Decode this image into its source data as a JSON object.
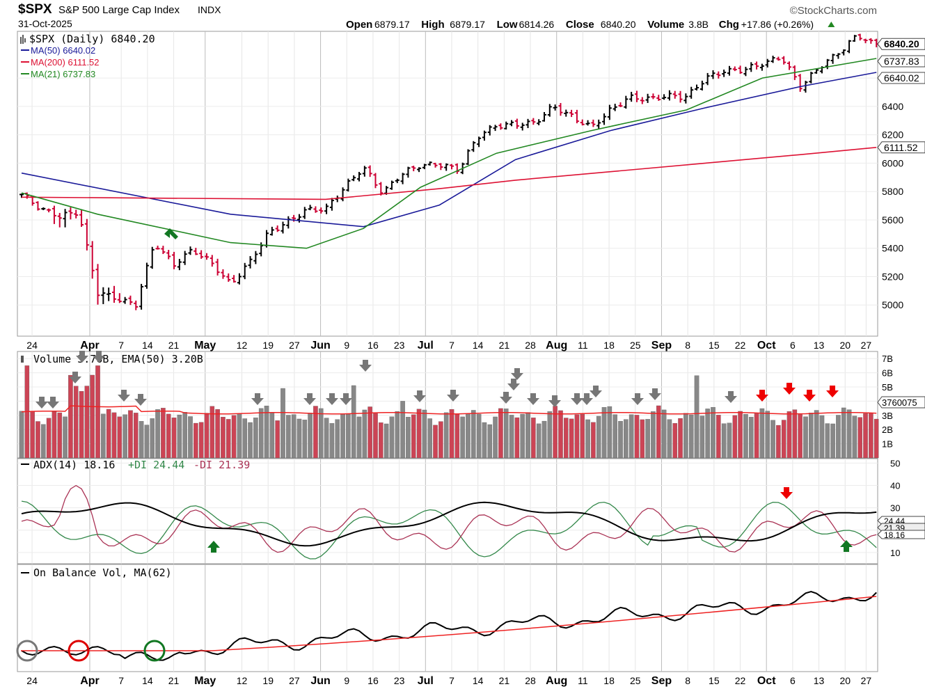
{
  "header": {
    "symbol": "$SPX",
    "name": "S&P 500 Large Cap Index",
    "exchange": "INDX",
    "date": "31-Oct-2025",
    "watermark": "©StockCharts.com",
    "quote": {
      "open_label": "Open",
      "open": "6879.17",
      "high_label": "High",
      "high": "6879.17",
      "low_label": "Low",
      "low": "6814.26",
      "close_label": "Close",
      "close": "6840.20",
      "volume_label": "Volume",
      "volume": "3.8B",
      "chg_label": "Chg",
      "chg": "+17.86 (+0.26%)",
      "chg_icon": "up-triangle-icon"
    }
  },
  "colors": {
    "up_bar": "#000000",
    "down_bar": "#cc0033",
    "ma50": "#1a1a99",
    "ma200": "#dd1133",
    "ma21": "#228822",
    "vol_up": "#888888",
    "vol_down": "#cc4455",
    "vol_ema": "#ee2222",
    "adx": "#000000",
    "plus_di": "#33884a",
    "minus_di": "#aa3355",
    "obv": "#000000",
    "obv_ma": "#ee2222",
    "arrow_gray": "#777777",
    "arrow_red": "#ee0000",
    "arrow_green": "#117722"
  },
  "x_axis_labels": [
    {
      "label": "24",
      "bold": false
    },
    {
      "label": "Apr",
      "bold": true
    },
    {
      "label": "7",
      "bold": false
    },
    {
      "label": "14",
      "bold": false
    },
    {
      "label": "21",
      "bold": false
    },
    {
      "label": "May",
      "bold": true
    },
    {
      "label": "12",
      "bold": false
    },
    {
      "label": "19",
      "bold": false
    },
    {
      "label": "27",
      "bold": false
    },
    {
      "label": "Jun",
      "bold": true
    },
    {
      "label": "9",
      "bold": false
    },
    {
      "label": "16",
      "bold": false
    },
    {
      "label": "23",
      "bold": false
    },
    {
      "label": "Jul",
      "bold": true
    },
    {
      "label": "7",
      "bold": false
    },
    {
      "label": "14",
      "bold": false
    },
    {
      "label": "21",
      "bold": false
    },
    {
      "label": "28",
      "bold": false
    },
    {
      "label": "Aug",
      "bold": true
    },
    {
      "label": "11",
      "bold": false
    },
    {
      "label": "18",
      "bold": false
    },
    {
      "label": "25",
      "bold": false
    },
    {
      "label": "Sep",
      "bold": true
    },
    {
      "label": "8",
      "bold": false
    },
    {
      "label": "15",
      "bold": false
    },
    {
      "label": "22",
      "bold": false
    },
    {
      "label": "Oct",
      "bold": true
    },
    {
      "label": "6",
      "bold": false
    },
    {
      "label": "13",
      "bold": false
    },
    {
      "label": "20",
      "bold": false
    },
    {
      "label": "27",
      "bold": false
    }
  ],
  "chart_data": [
    {
      "type": "ohlc",
      "panel": "price",
      "legend_title": "$SPX (Daily) 6840.20",
      "series": [
        {
          "name": "MA(50) 6640.02",
          "legend_icon": "ma50-line-icon"
        },
        {
          "name": "MA(200) 6111.52",
          "legend_icon": "ma200-line-icon"
        },
        {
          "name": "MA(21) 6737.83",
          "legend_icon": "ma21-line-icon"
        }
      ],
      "y_ticks": [
        "5000",
        "5200",
        "5400",
        "5600",
        "5800",
        "6000",
        "6200",
        "6400",
        "6600"
      ],
      "ylim": [
        4800,
        6900
      ],
      "value_tags": [
        {
          "value": "6840.20",
          "bold": true
        },
        {
          "value": "6737.83",
          "bold": false
        },
        {
          "value": "6640.02",
          "bold": false
        },
        {
          "value": "6111.52",
          "bold": false
        }
      ],
      "close_points": [
        [
          "Mar 24",
          5767
        ],
        [
          "Mar 27",
          5693
        ],
        [
          "Mar 31",
          5612
        ],
        [
          "Apr 2",
          5670
        ],
        [
          "Apr 4",
          5074
        ],
        [
          "Apr 7",
          5062
        ],
        [
          "Apr 8",
          4982
        ],
        [
          "Apr 9",
          5457
        ],
        [
          "Apr 10",
          5268
        ],
        [
          "Apr 14",
          5405
        ],
        [
          "Apr 17",
          5282
        ],
        [
          "Apr 21",
          5158
        ],
        [
          "Apr 22",
          5287
        ],
        [
          "Apr 25",
          5525
        ],
        [
          "Apr 30",
          5569
        ],
        [
          "May 2",
          5686
        ],
        [
          "May 9",
          5660
        ],
        [
          "May 12",
          5844
        ],
        [
          "May 16",
          5958
        ],
        [
          "May 23",
          5802
        ],
        [
          "May 30",
          5911
        ],
        [
          "Jun 6",
          6000
        ],
        [
          "Jun 13",
          5977
        ],
        [
          "Jun 20",
          5968
        ],
        [
          "Jun 27",
          6173
        ],
        [
          "Jul 3",
          6279
        ],
        [
          "Jul 11",
          6260
        ],
        [
          "Jul 18",
          6297
        ],
        [
          "Jul 25",
          6388
        ],
        [
          "Jul 31",
          6339
        ],
        [
          "Aug 1",
          6238
        ],
        [
          "Aug 8",
          6389
        ],
        [
          "Aug 15",
          6449
        ],
        [
          "Aug 22",
          6466
        ],
        [
          "Aug 29",
          6460
        ],
        [
          "Sep 5",
          6481
        ],
        [
          "Sep 12",
          6584
        ],
        [
          "Sep 19",
          6664
        ],
        [
          "Sep 26",
          6643
        ],
        [
          "Oct 3",
          6715
        ],
        [
          "Oct 9",
          6735
        ],
        [
          "Oct 10",
          6552
        ],
        [
          "Oct 17",
          6664
        ],
        [
          "Oct 24",
          6791
        ],
        [
          "Oct 28",
          6890
        ],
        [
          "Oct 31",
          6840
        ]
      ],
      "ma_points": {
        "MA(50)": [
          [
            "Mar 24",
            5930
          ],
          [
            "Apr 21",
            5640
          ],
          [
            "May 16",
            5552
          ],
          [
            "Jun 13",
            5705
          ],
          [
            "Jul 11",
            6025
          ],
          [
            "Aug 8",
            6230
          ],
          [
            "Sep 12",
            6390
          ],
          [
            "Oct 10",
            6540
          ],
          [
            "Oct 31",
            6640
          ]
        ],
        "MA(200)": [
          [
            "Mar 24",
            5760
          ],
          [
            "May 9",
            5745
          ],
          [
            "Jun 13",
            5820
          ],
          [
            "Jul 11",
            5880
          ],
          [
            "Aug 8",
            5940
          ],
          [
            "Sep 12",
            6000
          ],
          [
            "Oct 10",
            6060
          ],
          [
            "Oct 31",
            6111
          ]
        ],
        "MA(21)": [
          [
            "Mar 24",
            5790
          ],
          [
            "Apr 4",
            5640
          ],
          [
            "Apr 21",
            5440
          ],
          [
            "May 2",
            5400
          ],
          [
            "May 16",
            5540
          ],
          [
            "Jun 6",
            5830
          ],
          [
            "Jul 3",
            6070
          ],
          [
            "Aug 1",
            6230
          ],
          [
            "Sep 5",
            6375
          ],
          [
            "Oct 3",
            6600
          ],
          [
            "Oct 31",
            6738
          ]
        ]
      }
    },
    {
      "type": "bar",
      "panel": "volume",
      "legend_title": "Volume 3.76B, EMA(50) 3.20B",
      "y_ticks": [
        "1B",
        "2B",
        "3B",
        "4B",
        "5B",
        "6B",
        "7B"
      ],
      "ylim": [
        0,
        7.5
      ],
      "value_tag": "3760075"
    },
    {
      "type": "line",
      "panel": "adx",
      "legend_title_adx": "ADX(14) 18.16",
      "legend_title_plus": "+DI 24.44",
      "legend_title_minus": "-DI 21.39",
      "y_ticks": [
        "10",
        "20",
        "30",
        "40",
        "50"
      ],
      "ylim": [
        5,
        52
      ],
      "value_tags": [
        "24.44",
        "21.39",
        "18.16"
      ]
    },
    {
      "type": "line",
      "panel": "obv",
      "legend_title": "On Balance Vol, MA(62)"
    }
  ]
}
